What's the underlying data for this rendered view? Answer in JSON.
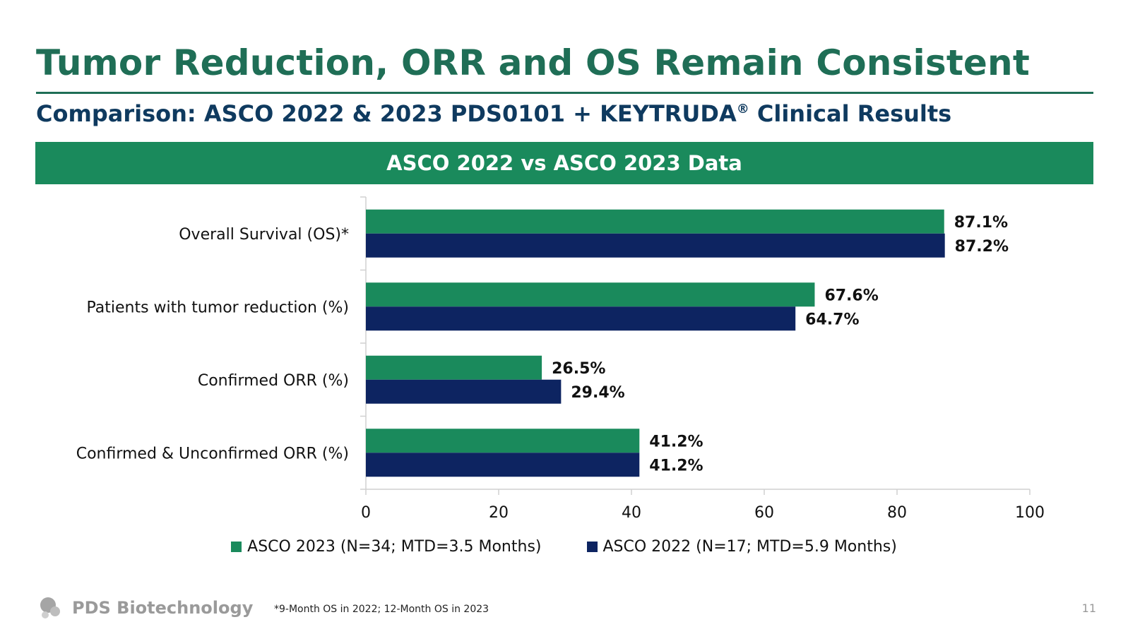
{
  "header": {
    "title": "Tumor Reduction, ORR and OS Remain Consistent",
    "subtitle": "Comparison: ASCO 2022 & 2023 PDS0101 + KEYTRUDA",
    "subtitle_mark": "®",
    "banner": "ASCO 2022 vs ASCO 2023 Data"
  },
  "chart_data": {
    "type": "bar",
    "orientation": "horizontal",
    "categories": [
      "Overall Survival (OS)*",
      "Patients with tumor reduction (%)",
      "Confirmed ORR (%)",
      "Confirmed & Unconfirmed ORR (%)"
    ],
    "series": [
      {
        "name": "ASCO 2023 (N=34; MTD=3.5 Months)",
        "color": "#1a8a5c",
        "values": [
          87.1,
          67.6,
          26.5,
          41.2
        ],
        "labels": [
          "87.1%",
          "67.6%",
          "26.5%",
          "41.2%"
        ]
      },
      {
        "name": "ASCO 2022 (N=17; MTD=5.9 Months)",
        "color": "#0d2461",
        "values": [
          87.2,
          64.7,
          29.4,
          41.2
        ],
        "labels": [
          "87.2%",
          "64.7%",
          "29.4%",
          "41.2%"
        ]
      }
    ],
    "xlim": [
      0,
      100
    ],
    "xticks": [
      "0",
      "20",
      "40",
      "60",
      "80",
      "100"
    ],
    "grid": false,
    "legend_position": "bottom"
  },
  "footer": {
    "logo_text": "PDS Biotechnology",
    "footnote": "*9-Month OS in 2022; 12-Month OS in 2023",
    "page_number": "11"
  }
}
